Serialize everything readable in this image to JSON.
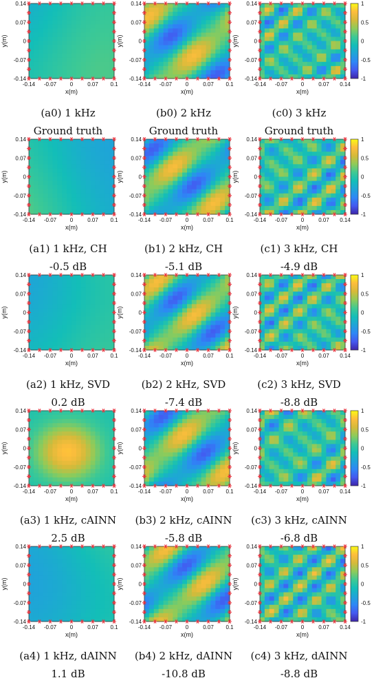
{
  "colormap": [
    "#3e26a8",
    "#4458f0",
    "#2e87f6",
    "#1fa4d8",
    "#13beb8",
    "#3ec994",
    "#8ecb5a",
    "#d5ba3a",
    "#fdbd3c",
    "#f9fb15"
  ],
  "sensor_color": "#e8323c",
  "chart_data": {
    "type": "heatmap",
    "xlabel": "x(m)",
    "ylabel": "y(m)",
    "xticks": [
      "-0.14",
      "-0.07",
      "0",
      "0.07",
      "0.1"
    ],
    "xticks_alt": [
      "-0.14",
      "-0.07",
      "0",
      "0.07",
      "0.14"
    ],
    "yticks": [
      "0.14",
      "0.07",
      "0",
      "-0.07",
      "-0.14"
    ],
    "xlim": [
      -0.14,
      0.14
    ],
    "ylim": [
      -0.14,
      0.14
    ],
    "clim": [
      -1,
      1
    ],
    "colorbar_ticks": [
      "1",
      "0.5",
      "0",
      "-0.5",
      "-1"
    ],
    "sensor_marker": "*",
    "rows": [
      {
        "panels": [
          {
            "caption": "(a0) 1 kHz",
            "subcaption": "Ground truth",
            "freq": 1,
            "xticks_last": "0.1"
          },
          {
            "caption": "(b0) 2 kHz",
            "subcaption": "Ground truth",
            "freq": 2,
            "xticks_last": "0.1"
          },
          {
            "caption": "(c0) 3 kHz",
            "subcaption": "Ground truth",
            "freq": 3,
            "xticks_last": "0.14"
          }
        ]
      },
      {
        "panels": [
          {
            "caption": "(a1) 1 kHz, CH",
            "subcaption": "-0.5 dB",
            "freq": 1,
            "xticks_last": "0.1"
          },
          {
            "caption": "(b1) 2 kHz, CH",
            "subcaption": "-5.1 dB",
            "freq": 2,
            "xticks_last": "0.1"
          },
          {
            "caption": "(c1) 3 kHz, CH",
            "subcaption": "-4.9 dB",
            "freq": 3,
            "xticks_last": "0.14"
          }
        ]
      },
      {
        "panels": [
          {
            "caption": "(a2) 1 kHz, SVD",
            "subcaption": "0.2 dB",
            "freq": 1,
            "xticks_last": "0.1"
          },
          {
            "caption": "(b2) 2 kHz, SVD",
            "subcaption": "-7.4 dB",
            "freq": 2,
            "xticks_last": "0.1"
          },
          {
            "caption": "(c2) 3 kHz, SVD",
            "subcaption": "-8.8 dB",
            "freq": 3,
            "xticks_last": "0.14"
          }
        ]
      },
      {
        "panels": [
          {
            "caption": "(a3) 1 kHz, cAINN",
            "subcaption": "2.5 dB",
            "freq": 1,
            "xticks_last": "0.1"
          },
          {
            "caption": "(b3) 2 kHz, cAINN",
            "subcaption": "-5.8 dB",
            "freq": 2,
            "xticks_last": "0.1"
          },
          {
            "caption": "(c3) 3 kHz, cAINN",
            "subcaption": "-6.8 dB",
            "freq": 3,
            "xticks_last": "0.14"
          }
        ]
      },
      {
        "panels": [
          {
            "caption": "(a4) 1 kHz, dAINN",
            "subcaption": "1.1 dB",
            "freq": 1,
            "xticks_last": "0.1"
          },
          {
            "caption": "(b4) 2 kHz, dAINN",
            "subcaption": "-10.8 dB",
            "freq": 2,
            "xticks_last": "0.1"
          },
          {
            "caption": "(c4) 3 kHz, dAINN",
            "subcaption": "-8.8 dB",
            "freq": 3,
            "xticks_last": "0.14"
          }
        ]
      }
    ]
  }
}
